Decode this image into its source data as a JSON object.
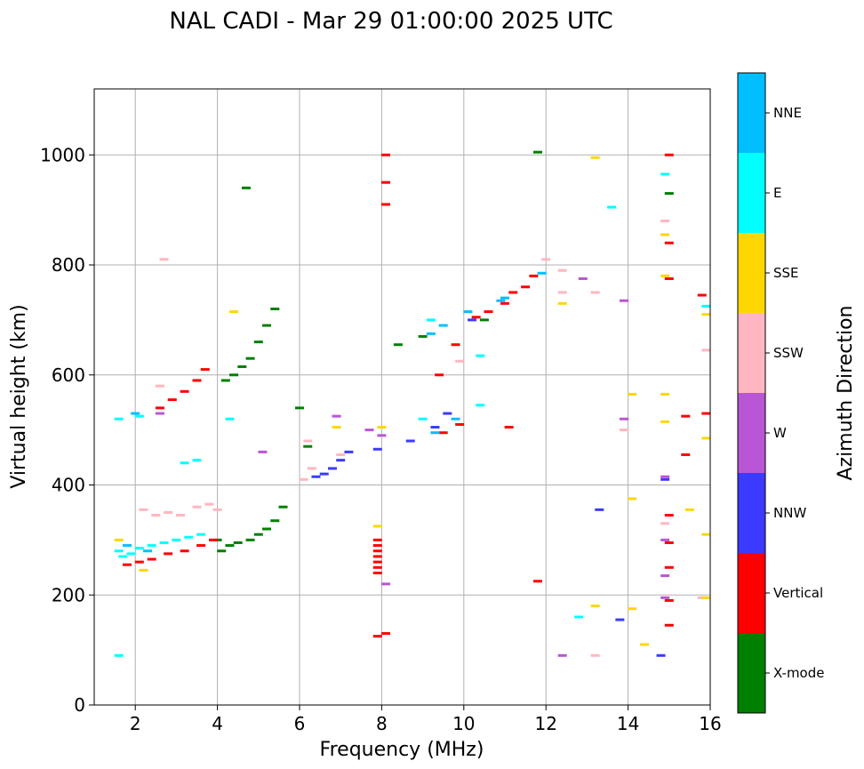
{
  "chart_data": {
    "type": "scatter",
    "title": "NAL CADI - Mar 29 01:00:00 2025 UTC",
    "xlabel": "Frequency (MHz)",
    "ylabel": "Virtual height (km)",
    "xlim": [
      1,
      16
    ],
    "ylim": [
      0,
      1120
    ],
    "xticks": [
      2,
      4,
      6,
      8,
      10,
      12,
      14,
      16
    ],
    "yticks": [
      0,
      200,
      400,
      600,
      800,
      1000
    ],
    "grid": true,
    "colorbar": {
      "label": "Azimuth Direction",
      "categories": [
        {
          "name": "X-mode",
          "color": "#008000"
        },
        {
          "name": "Vertical",
          "color": "#ff0000"
        },
        {
          "name": "NNW",
          "color": "#3b3bff"
        },
        {
          "name": "W",
          "color": "#b856d6"
        },
        {
          "name": "SSW",
          "color": "#ffb6c1"
        },
        {
          "name": "SSE",
          "color": "#ffd700"
        },
        {
          "name": "E",
          "color": "#00ffff"
        },
        {
          "name": "NNE",
          "color": "#00bfff"
        }
      ]
    },
    "clusters": [
      {
        "category": "X-mode",
        "points": [
          [
            4.1,
            280
          ],
          [
            4.3,
            290
          ],
          [
            4.5,
            295
          ],
          [
            4.8,
            300
          ],
          [
            5.0,
            310
          ],
          [
            5.2,
            320
          ],
          [
            5.4,
            335
          ],
          [
            5.6,
            360
          ],
          [
            4.2,
            590
          ],
          [
            4.4,
            600
          ],
          [
            4.6,
            615
          ],
          [
            4.8,
            630
          ],
          [
            5.0,
            660
          ],
          [
            5.2,
            690
          ],
          [
            5.4,
            720
          ],
          [
            4.7,
            940
          ],
          [
            8.4,
            655
          ],
          [
            9.0,
            670
          ],
          [
            10.5,
            700
          ],
          [
            11.8,
            1005
          ],
          [
            15.0,
            930
          ],
          [
            6.0,
            540
          ],
          [
            6.2,
            470
          ],
          [
            4.0,
            300
          ]
        ]
      },
      {
        "category": "Vertical",
        "points": [
          [
            1.8,
            255
          ],
          [
            2.1,
            260
          ],
          [
            2.4,
            265
          ],
          [
            2.8,
            275
          ],
          [
            3.2,
            280
          ],
          [
            3.6,
            290
          ],
          [
            3.9,
            300
          ],
          [
            2.6,
            540
          ],
          [
            2.9,
            555
          ],
          [
            3.2,
            570
          ],
          [
            3.5,
            590
          ],
          [
            3.7,
            610
          ],
          [
            7.9,
            300
          ],
          [
            7.9,
            290
          ],
          [
            7.9,
            280
          ],
          [
            7.9,
            270
          ],
          [
            7.9,
            260
          ],
          [
            7.9,
            250
          ],
          [
            7.9,
            240
          ],
          [
            7.9,
            125
          ],
          [
            8.1,
            130
          ],
          [
            8.1,
            1000
          ],
          [
            8.1,
            950
          ],
          [
            8.1,
            910
          ],
          [
            9.5,
            495
          ],
          [
            9.9,
            510
          ],
          [
            9.8,
            655
          ],
          [
            10.3,
            705
          ],
          [
            10.6,
            715
          ],
          [
            11.0,
            730
          ],
          [
            11.2,
            750
          ],
          [
            11.5,
            760
          ],
          [
            11.7,
            780
          ],
          [
            11.1,
            505
          ],
          [
            11.8,
            225
          ],
          [
            15.0,
            1000
          ],
          [
            15.0,
            840
          ],
          [
            15.0,
            775
          ],
          [
            15.0,
            345
          ],
          [
            15.0,
            295
          ],
          [
            15.0,
            250
          ],
          [
            15.0,
            190
          ],
          [
            15.0,
            145
          ],
          [
            15.4,
            525
          ],
          [
            15.9,
            530
          ],
          [
            15.4,
            455
          ],
          [
            15.8,
            745
          ],
          [
            9.4,
            600
          ]
        ]
      },
      {
        "category": "NNW",
        "points": [
          [
            6.4,
            415
          ],
          [
            6.6,
            420
          ],
          [
            6.8,
            430
          ],
          [
            7.0,
            445
          ],
          [
            7.2,
            460
          ],
          [
            7.9,
            465
          ],
          [
            8.7,
            480
          ],
          [
            9.3,
            505
          ],
          [
            9.6,
            530
          ],
          [
            10.2,
            700
          ],
          [
            13.3,
            355
          ],
          [
            13.8,
            155
          ],
          [
            14.8,
            90
          ],
          [
            14.9,
            410
          ]
        ]
      },
      {
        "category": "W",
        "points": [
          [
            2.6,
            530
          ],
          [
            5.1,
            460
          ],
          [
            6.9,
            525
          ],
          [
            7.7,
            500
          ],
          [
            8.0,
            490
          ],
          [
            8.1,
            220
          ],
          [
            12.4,
            90
          ],
          [
            12.9,
            775
          ],
          [
            13.9,
            735
          ],
          [
            13.9,
            520
          ],
          [
            14.9,
            415
          ],
          [
            14.9,
            300
          ],
          [
            14.9,
            235
          ],
          [
            14.9,
            195
          ]
        ]
      },
      {
        "category": "SSW",
        "points": [
          [
            2.5,
            345
          ],
          [
            2.8,
            350
          ],
          [
            3.1,
            345
          ],
          [
            3.5,
            360
          ],
          [
            3.8,
            365
          ],
          [
            4.0,
            355
          ],
          [
            2.2,
            355
          ],
          [
            2.6,
            580
          ],
          [
            2.7,
            810
          ],
          [
            6.1,
            410
          ],
          [
            6.2,
            480
          ],
          [
            6.3,
            430
          ],
          [
            7.0,
            455
          ],
          [
            9.9,
            625
          ],
          [
            12.0,
            810
          ],
          [
            12.4,
            790
          ],
          [
            12.4,
            750
          ],
          [
            13.2,
            750
          ],
          [
            13.2,
            90
          ],
          [
            13.9,
            500
          ],
          [
            14.9,
            880
          ],
          [
            14.9,
            330
          ],
          [
            15.9,
            645
          ],
          [
            15.8,
            195
          ]
        ]
      },
      {
        "category": "SSE",
        "points": [
          [
            1.6,
            300
          ],
          [
            2.2,
            245
          ],
          [
            4.4,
            715
          ],
          [
            6.9,
            505
          ],
          [
            7.9,
            325
          ],
          [
            8.0,
            505
          ],
          [
            12.4,
            730
          ],
          [
            13.2,
            995
          ],
          [
            13.2,
            180
          ],
          [
            14.1,
            565
          ],
          [
            14.1,
            375
          ],
          [
            14.1,
            175
          ],
          [
            14.4,
            110
          ],
          [
            14.9,
            565
          ],
          [
            14.9,
            515
          ],
          [
            14.9,
            855
          ],
          [
            14.9,
            780
          ],
          [
            15.5,
            355
          ],
          [
            15.9,
            710
          ],
          [
            15.9,
            485
          ],
          [
            15.9,
            310
          ],
          [
            15.9,
            195
          ]
        ]
      },
      {
        "category": "E",
        "points": [
          [
            1.6,
            280
          ],
          [
            1.7,
            270
          ],
          [
            1.9,
            275
          ],
          [
            2.1,
            285
          ],
          [
            2.4,
            290
          ],
          [
            2.7,
            295
          ],
          [
            3.0,
            300
          ],
          [
            3.3,
            305
          ],
          [
            3.6,
            310
          ],
          [
            1.6,
            520
          ],
          [
            1.6,
            90
          ],
          [
            3.2,
            440
          ],
          [
            3.5,
            445
          ],
          [
            4.3,
            520
          ],
          [
            9.0,
            520
          ],
          [
            9.2,
            700
          ],
          [
            10.4,
            635
          ],
          [
            10.4,
            545
          ],
          [
            12.8,
            160
          ],
          [
            13.6,
            905
          ],
          [
            14.9,
            965
          ],
          [
            15.9,
            725
          ],
          [
            2.1,
            525
          ]
        ]
      },
      {
        "category": "NNE",
        "points": [
          [
            1.8,
            290
          ],
          [
            2.3,
            280
          ],
          [
            9.3,
            495
          ],
          [
            9.2,
            675
          ],
          [
            9.5,
            690
          ],
          [
            10.1,
            715
          ],
          [
            11.0,
            740
          ],
          [
            11.9,
            785
          ],
          [
            2.0,
            530
          ],
          [
            9.8,
            520
          ],
          [
            10.9,
            735
          ]
        ]
      }
    ]
  }
}
